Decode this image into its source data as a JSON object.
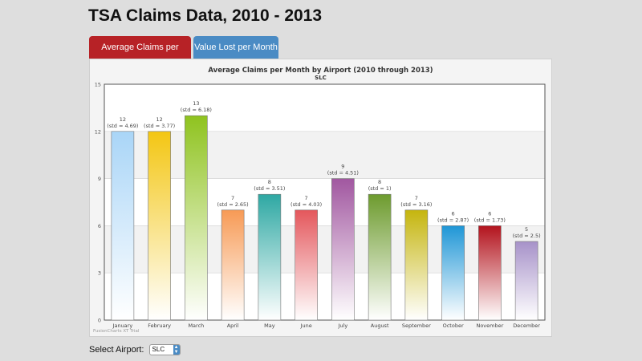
{
  "page": {
    "title": "TSA Claims Data, 2010 - 2013"
  },
  "tabs": [
    {
      "label": "Average Claims per Month",
      "active": true,
      "color": "#b72226"
    },
    {
      "label": "Value Lost per Month",
      "active": false,
      "color": "#4a8bc4"
    }
  ],
  "select": {
    "label": "Select Airport:",
    "value": "SLC"
  },
  "watermark": "FusionCharts XT Trial",
  "chart_data": {
    "type": "bar",
    "title": "Average Claims per Month by Airport (2010 through 2013)",
    "subtitle": "SLC",
    "xlabel": "",
    "ylabel": "",
    "ylim": [
      0,
      15
    ],
    "yticks": [
      0,
      3,
      6,
      9,
      12,
      15
    ],
    "grid": true,
    "categories": [
      "January",
      "February",
      "March",
      "April",
      "May",
      "June",
      "July",
      "August",
      "September",
      "October",
      "November",
      "December"
    ],
    "values": [
      12,
      12,
      13,
      7,
      8,
      7,
      9,
      8,
      7,
      6,
      6,
      5
    ],
    "value_labels": [
      "12",
      "12",
      "13",
      "7",
      "8",
      "7",
      "9",
      "8",
      "7",
      "6",
      "6",
      "5"
    ],
    "std_labels": [
      "(std = 4.69)",
      "(std = 3.77)",
      "(std = 6.18)",
      "(std = 2.65)",
      "(std = 3.51)",
      "(std = 4.03)",
      "(std = 4.51)",
      "(std = 1)",
      "(std = 3.16)",
      "(std = 2.87)",
      "(std = 1.73)",
      "(std = 2.5)"
    ],
    "colors": [
      "#a9d5f7",
      "#f3c613",
      "#8fc31f",
      "#f79a55",
      "#2ea8a3",
      "#e4575c",
      "#a157a0",
      "#6d9b2e",
      "#c5b50e",
      "#1f96d6",
      "#b3131d",
      "#a792c9"
    ]
  }
}
